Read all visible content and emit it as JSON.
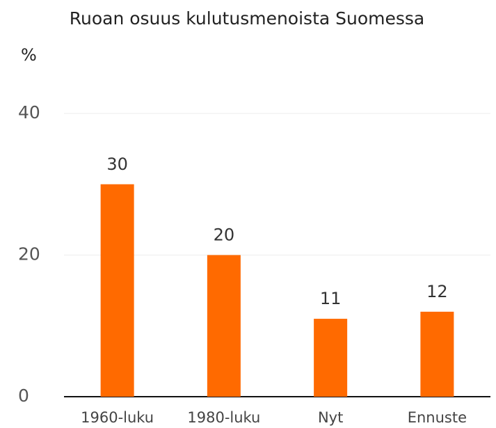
{
  "chart_data": {
    "type": "bar",
    "title": "Ruoan osuus kulutusmenoista Suomessa",
    "y_label": "%",
    "categories": [
      "1960-luku",
      "1980-luku",
      "Nyt",
      "Ennuste"
    ],
    "values": [
      30,
      20,
      11,
      12
    ],
    "color": "#ff6a00",
    "ylim": [
      0,
      40
    ],
    "yticks": [
      0,
      20,
      40
    ],
    "grid": true
  }
}
